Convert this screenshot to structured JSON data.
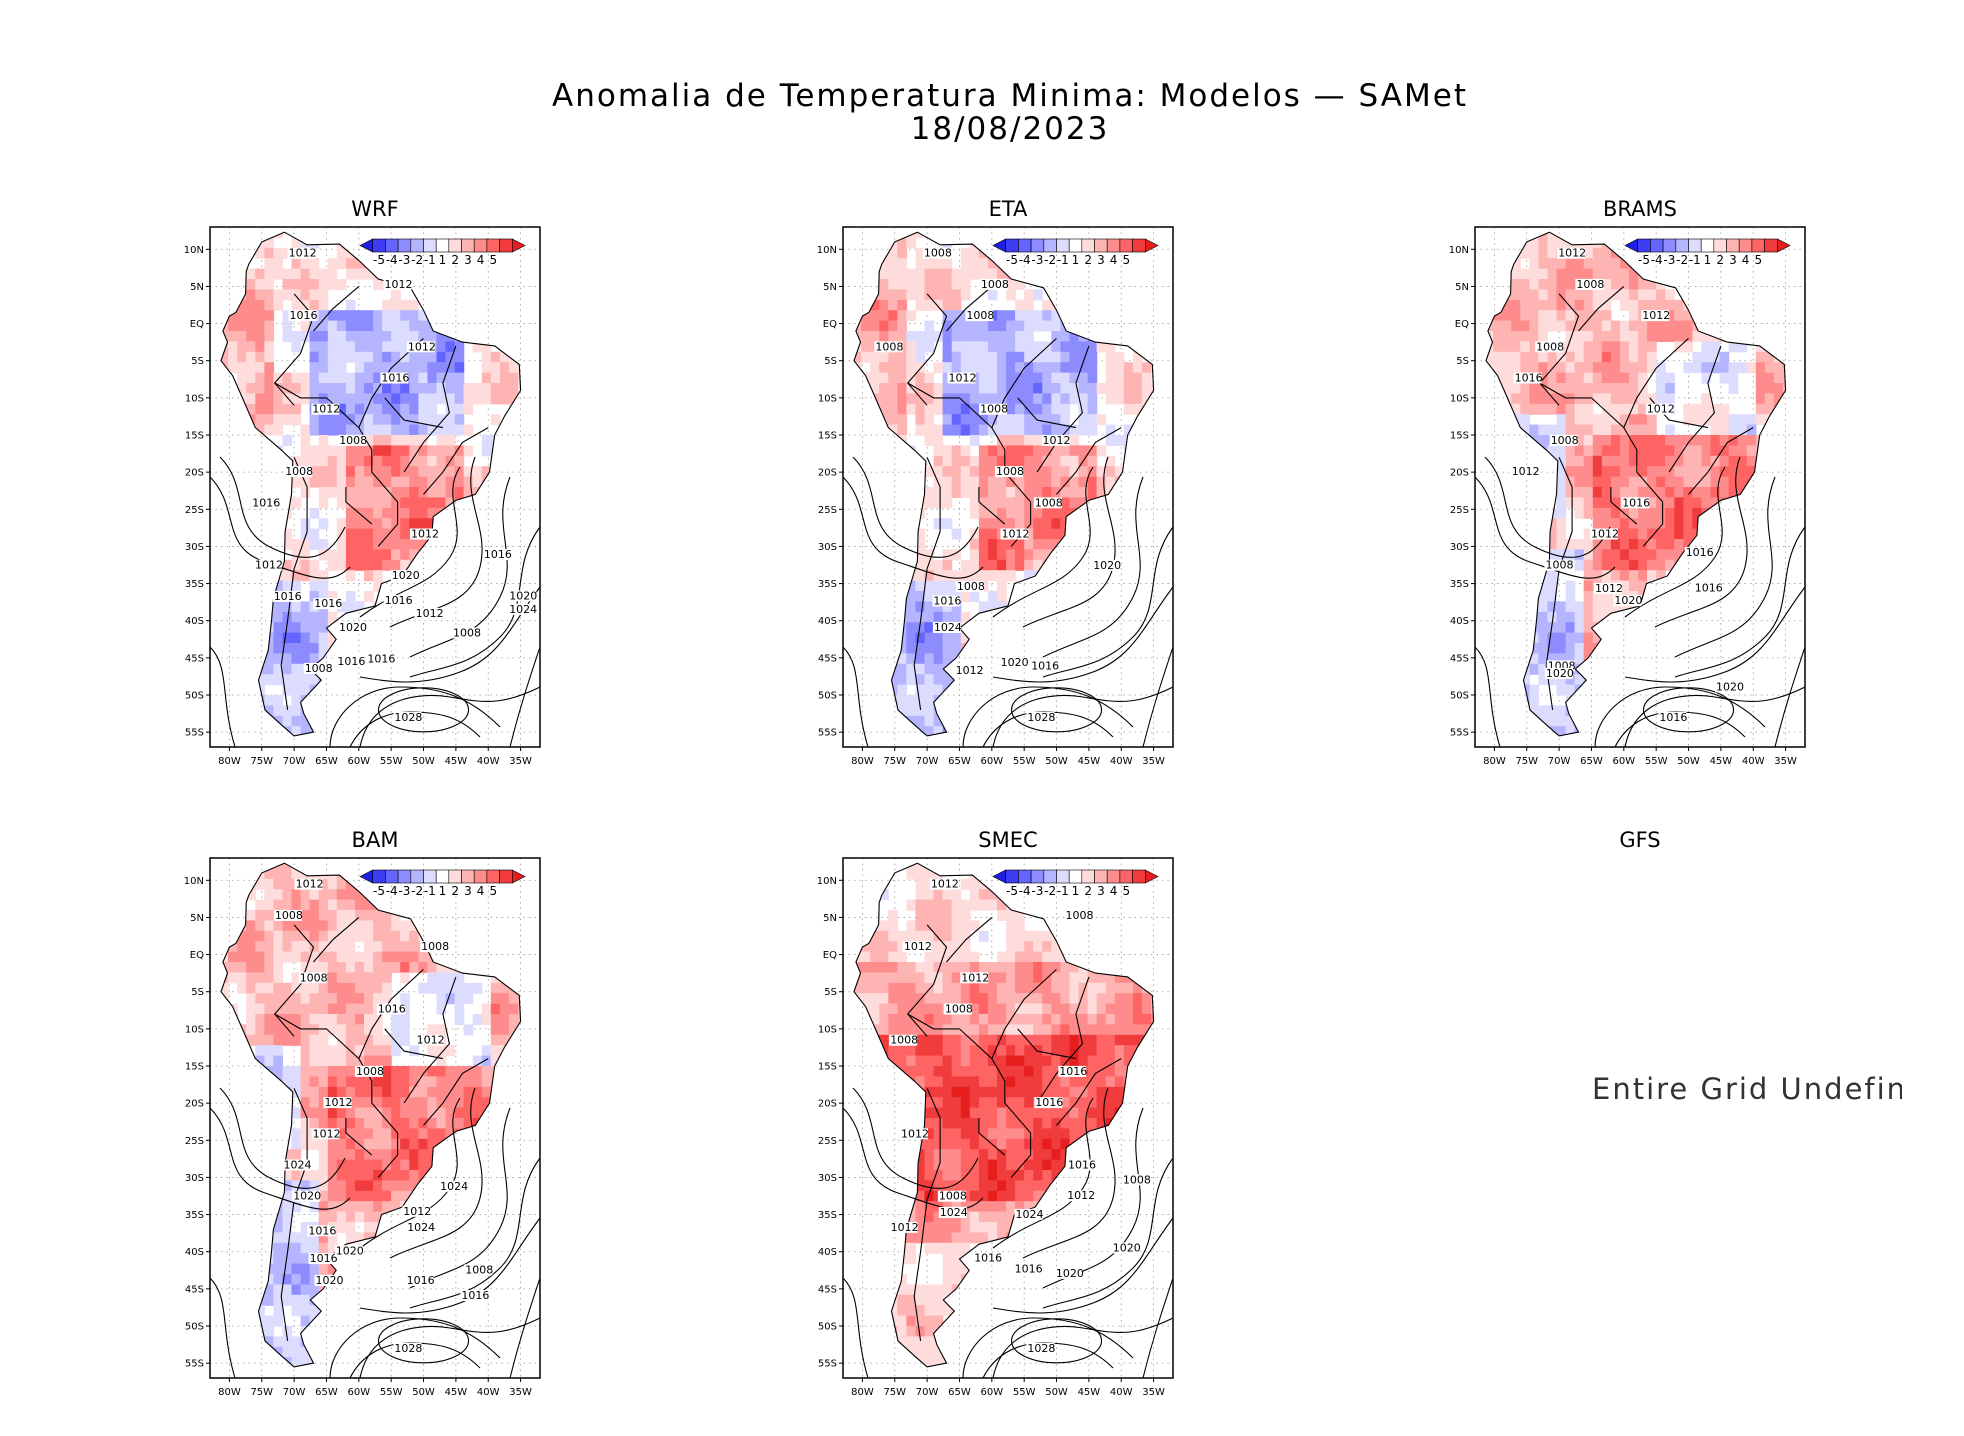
{
  "figure": {
    "title_line1": "Anomalia de Temperatura Minima: Modelos — SAMet",
    "title_line2": "18/08/2023"
  },
  "colorbar": {
    "labels": [
      "-5",
      "-4",
      "-3",
      "-2",
      "-1",
      "1",
      "2",
      "3",
      "4",
      "5"
    ],
    "colors": [
      "#1e1ee6",
      "#3c3cf0",
      "#6464ff",
      "#8c8cff",
      "#b4b4ff",
      "#dcdcff",
      "#ffffff",
      "#ffdcdc",
      "#ffb4b4",
      "#ff8c8c",
      "#ff6464",
      "#f03c3c",
      "#e61e1e"
    ]
  },
  "axes": {
    "lat_labels": [
      "10N",
      "5N",
      "EQ",
      "5S",
      "10S",
      "15S",
      "20S",
      "25S",
      "30S",
      "35S",
      "40S",
      "45S",
      "50S",
      "55S"
    ],
    "lon_labels": [
      "80W",
      "75W",
      "70W",
      "65W",
      "60W",
      "55W",
      "50W",
      "45W",
      "40W",
      "35W"
    ]
  },
  "panels": [
    {
      "name": "WRF",
      "has_data": true,
      "palette": "mixed",
      "isobars": [
        "1012",
        "1012",
        "1016",
        "1012",
        "1016",
        "1012",
        "1008",
        "1008",
        "1016",
        "1012",
        "1012",
        "1016",
        "1020",
        "1016",
        "1008",
        "1016",
        "1016",
        "1020",
        "1008",
        "1012",
        "1024",
        "1020",
        "1016",
        "1016",
        "1028"
      ]
    },
    {
      "name": "ETA",
      "has_data": true,
      "palette": "mixed",
      "isobars": [
        "1008",
        "1008",
        "1008",
        "1008",
        "1012",
        "1008",
        "1012",
        "1008",
        "1008",
        "1012",
        "1016",
        "1020",
        "1008",
        "1012",
        "1024",
        "1020",
        "1016",
        "1028"
      ]
    },
    {
      "name": "BRAMS",
      "has_data": true,
      "palette": "warm",
      "isobars": [
        "1012",
        "1008",
        "1012",
        "1008",
        "1016",
        "1012",
        "1008",
        "1012",
        "1016",
        "1012",
        "1008",
        "1016",
        "1016",
        "1020",
        "1020",
        "1008",
        "1012",
        "1020",
        "1016"
      ]
    },
    {
      "name": "BAM",
      "has_data": true,
      "palette": "warm",
      "isobars": [
        "1012",
        "1008",
        "1008",
        "1008",
        "1016",
        "1012",
        "1008",
        "1012",
        "1012",
        "1024",
        "1020",
        "1024",
        "1016",
        "1016",
        "1020",
        "1008",
        "1012",
        "1024",
        "1020",
        "1016",
        "1016",
        "1028"
      ]
    },
    {
      "name": "SMEC",
      "has_data": true,
      "palette": "hot",
      "isobars": [
        "1012",
        "1008",
        "1012",
        "1012",
        "1008",
        "1008",
        "1016",
        "1016",
        "1012",
        "1016",
        "1008",
        "1012",
        "1020",
        "1016",
        "1024",
        "1008",
        "1012",
        "1020",
        "1024",
        "1016",
        "1028"
      ]
    },
    {
      "name": "GFS",
      "has_data": false,
      "message": "Entire Grid Undefined"
    }
  ]
}
